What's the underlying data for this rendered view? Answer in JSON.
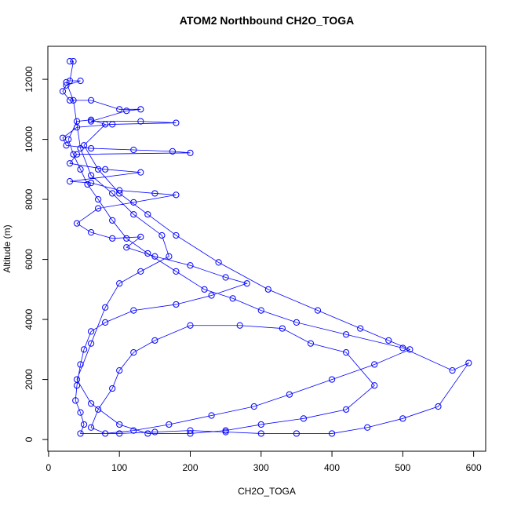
{
  "chart_data": {
    "type": "line",
    "title": "ATOM2 Northbound CH2O_TOGA",
    "xlabel": "CH2O_TOGA",
    "ylabel": "Altitude (m)",
    "color": "#0000ff",
    "marker": "open-circle",
    "xlim": [
      -1,
      617
    ],
    "ylim": [
      -390,
      13100
    ],
    "xticks": [
      0,
      100,
      200,
      300,
      400,
      500,
      600
    ],
    "yticks": [
      0,
      2000,
      4000,
      6000,
      8000,
      10000,
      12000
    ],
    "x": [
      30,
      35,
      30,
      45,
      25,
      20,
      30,
      60,
      100,
      130,
      110,
      60,
      130,
      180,
      90,
      40,
      20,
      25,
      60,
      120,
      175,
      200,
      40,
      30,
      80,
      130,
      30,
      60,
      100,
      150,
      180,
      120,
      70,
      40,
      60,
      90,
      130,
      110,
      150,
      200,
      250,
      280,
      230,
      180,
      120,
      80,
      60,
      50,
      45,
      40,
      38,
      45,
      50,
      45,
      100,
      150,
      200,
      250,
      300,
      350,
      400,
      450,
      500,
      550,
      593,
      570,
      500,
      420,
      350,
      300,
      260,
      220,
      180,
      140,
      110,
      90,
      70,
      55,
      45,
      35,
      28,
      40,
      60,
      80,
      50,
      70,
      100,
      140,
      180,
      240,
      310,
      380,
      440,
      480,
      510,
      460,
      400,
      340,
      290,
      230,
      170,
      120,
      80,
      60,
      70,
      90,
      100,
      120,
      150,
      200,
      270,
      330,
      370,
      420,
      460,
      420,
      360,
      300,
      250,
      200,
      140,
      100,
      60,
      40,
      60,
      80,
      100,
      130,
      170,
      160,
      120,
      90,
      60,
      45,
      35,
      25
    ],
    "values": [
      12600,
      12600,
      11950,
      11950,
      11800,
      11600,
      11300,
      11300,
      11000,
      11000,
      10950,
      10600,
      10600,
      10550,
      10500,
      10400,
      10050,
      9800,
      9700,
      9650,
      9600,
      9550,
      9500,
      9200,
      9000,
      8900,
      8600,
      8550,
      8300,
      8200,
      8150,
      7900,
      7700,
      7200,
      6900,
      6700,
      6750,
      6400,
      6100,
      5800,
      5400,
      5200,
      4800,
      4500,
      4300,
      3900,
      3600,
      3000,
      2500,
      1800,
      1300,
      900,
      500,
      200,
      200,
      250,
      300,
      250,
      200,
      200,
      200,
      400,
      700,
      1100,
      2550,
      2300,
      3050,
      3500,
      3900,
      4300,
      4700,
      5000,
      5600,
      6200,
      6700,
      7300,
      8000,
      8500,
      9000,
      9500,
      10000,
      10600,
      10650,
      10500,
      9800,
      9000,
      8200,
      7500,
      6800,
      5900,
      5000,
      4300,
      3700,
      3300,
      3000,
      2500,
      2000,
      1500,
      1100,
      800,
      500,
      300,
      200,
      400,
      1000,
      1700,
      2300,
      2900,
      3300,
      3800,
      3800,
      3700,
      3200,
      2900,
      1800,
      1000,
      700,
      500,
      300,
      200,
      200,
      500,
      1200,
      2000,
      3200,
      4400,
      5200,
      5600,
      6100,
      6800,
      7500,
      8200,
      8800,
      9700,
      11300,
      11900
    ]
  }
}
